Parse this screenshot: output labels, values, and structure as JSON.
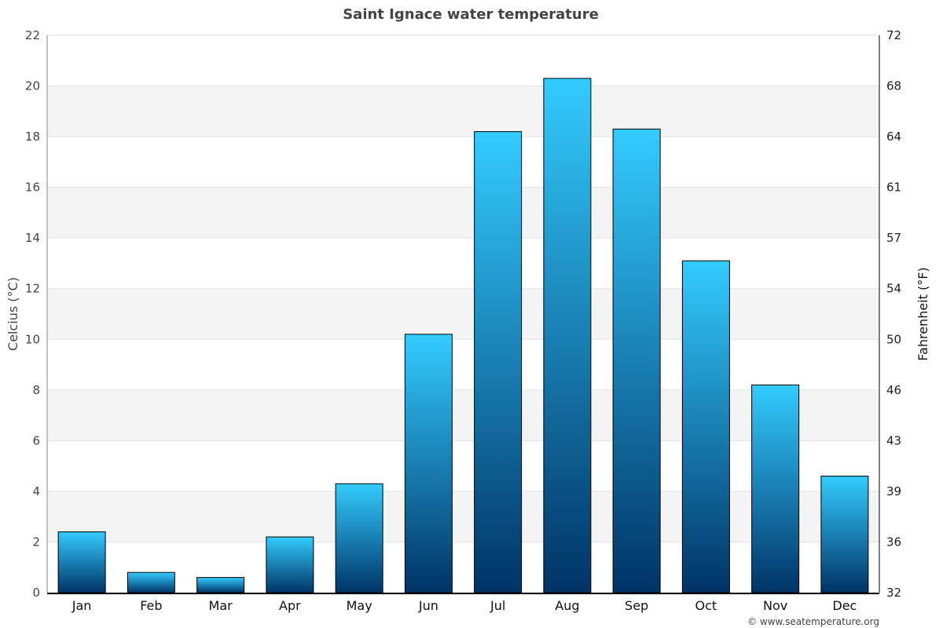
{
  "chart_data": {
    "type": "bar",
    "title": "Saint Ignace water temperature",
    "ylabel": "Celcius (°C)",
    "y2label": "Fahrenheit (°F)",
    "categories": [
      "Jan",
      "Feb",
      "Mar",
      "Apr",
      "May",
      "Jun",
      "Jul",
      "Aug",
      "Sep",
      "Oct",
      "Nov",
      "Dec"
    ],
    "values": [
      2.4,
      0.8,
      0.6,
      2.2,
      4.3,
      10.2,
      18.2,
      20.3,
      18.3,
      13.1,
      8.2,
      4.6
    ],
    "ylim": [
      0,
      22
    ],
    "yticks": [
      0,
      2,
      4,
      6,
      8,
      10,
      12,
      14,
      16,
      18,
      20,
      22
    ],
    "y2ticks": [
      "32",
      "36",
      "39",
      "43",
      "46",
      "50",
      "54",
      "57",
      "61",
      "64",
      "68",
      "72"
    ],
    "grid": true,
    "colors": {
      "bar_top": "#33ccff",
      "bar_bottom": "#003366",
      "band": "#f4f4f4"
    }
  },
  "credit": "© www.seatemperature.org"
}
